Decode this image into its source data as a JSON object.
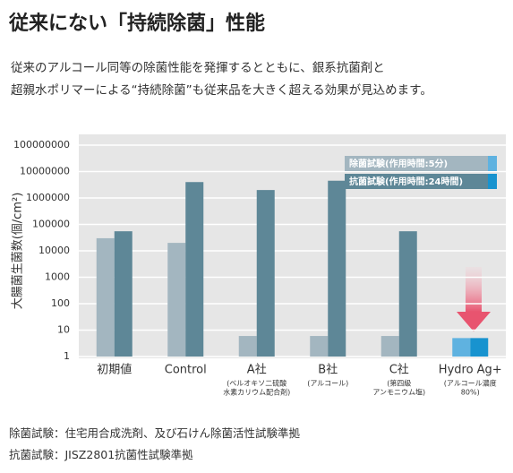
{
  "header": {
    "title": "従来にない「持続除菌」性能"
  },
  "intro": [
    "従来のアルコール同等の除菌性能を発揮するとともに、銀系抗菌剤と",
    "超親水ポリマーによる“持続除菌”も従来品を大きく超える効果が見込めます。"
  ],
  "chart_data": {
    "type": "bar",
    "y_label": "大腸菌生菌数(個/cm²)",
    "log_scale": true,
    "grid": true,
    "legend": "top-right",
    "categories": [
      "初期値",
      "Control",
      "A社",
      "B社",
      "C社",
      "Hydro Ag+"
    ],
    "category_notes": [
      null,
      null,
      [
        "(ベルオキソ二硫酸",
        "水素カリウム配合剤)"
      ],
      [
        "(アルコール)"
      ],
      [
        "(第四級",
        "アンモニウム塩)"
      ],
      [
        "(アルコール濃度",
        "80%)"
      ]
    ],
    "series": [
      {
        "name": "除菌試験(作用時間:5分)",
        "color": "#a3b6c0",
        "colors": [
          "#a3b6c0",
          "#a3b6c0",
          "#a3b6c0",
          "#a3b6c0",
          "#a3b6c0",
          "#5fb2e0"
        ],
        "values": [
          30000,
          20000,
          6,
          6,
          6,
          5
        ]
      },
      {
        "name": "抗菌試験(作用時間:24時間)",
        "color": "#5e8797",
        "colors": [
          "#5e8797",
          "#5e8797",
          "#5e8797",
          "#5e8797",
          "#5e8797",
          "#1893cf"
        ],
        "values": [
          55000,
          4000000,
          2000000,
          4500000,
          55000,
          5
        ]
      }
    ],
    "ylim": [
      1,
      100000000
    ],
    "yticks": [
      1,
      10,
      100,
      1000,
      10000,
      100000,
      1000000,
      10000000,
      100000000
    ]
  },
  "notes": [
    "除菌試験：住宅用合成洗剤、及び石けん除菌活性試験準拠",
    "抗菌試験：JISZ2801抗菌性試験準拠"
  ]
}
